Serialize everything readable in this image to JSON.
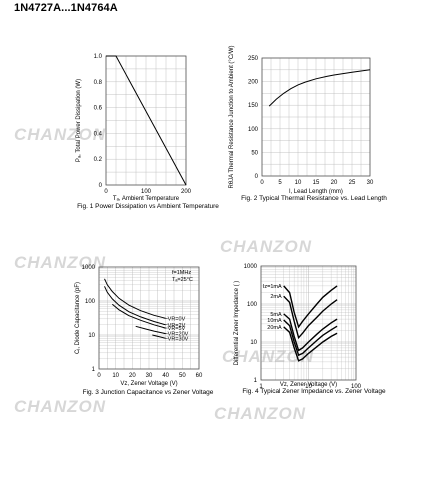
{
  "page_title": "1N4727A...1N4764A",
  "watermark": {
    "text": "CHANZON",
    "color": "#d7d7d7"
  },
  "chart_data": [
    {
      "type": "line",
      "title": "Fig. 1 Power Dissipation vs Ambient Temperature",
      "xlabel": "Tₐ, Ambient Temperature",
      "ylabel": "Pₐ, Total Power Dissipation (W)",
      "x_ticks": [
        0,
        100,
        200
      ],
      "y_ticks": [
        0,
        0.2,
        0.4,
        0.6,
        0.8,
        1.0
      ],
      "y_tick_labels": [
        "0",
        "0.2",
        "0.4",
        "0.6",
        "0.8",
        "1.0"
      ],
      "xlim": [
        0,
        200
      ],
      "ylim": [
        0,
        1.0
      ],
      "grid": true,
      "series": [
        {
          "x": [
            0,
            25,
            200
          ],
          "y": [
            1.0,
            1.0,
            0.0
          ]
        }
      ]
    },
    {
      "type": "line",
      "title": "Fig. 2 Typical Thermal Resistance vs. Lead Length",
      "xlabel": "l, Lead Length (mm)",
      "ylabel": "RθJA Thermal Resistance Junction to Ambient (°C/W)",
      "x_ticks": [
        0,
        5,
        10,
        15,
        20,
        25,
        30
      ],
      "y_ticks": [
        0,
        50,
        100,
        150,
        200,
        250
      ],
      "xlim": [
        0,
        30
      ],
      "ylim": [
        0,
        250
      ],
      "grid": true,
      "series": [
        {
          "x": [
            2,
            4,
            6,
            8,
            10,
            12,
            15,
            18,
            20,
            25,
            30
          ],
          "y": [
            148,
            163,
            175,
            185,
            193,
            199,
            206,
            211,
            214,
            220,
            225
          ]
        }
      ]
    },
    {
      "type": "line",
      "title": "Fig. 3 Junction Capacitance vs Zener Voltage",
      "xlabel": "Vz, Zener Voltage (V)",
      "ylabel": "Cⱼ, Diode Capacitance (pF)",
      "y_scale": "log",
      "x_ticks": [
        0,
        10,
        20,
        30,
        40,
        50,
        60
      ],
      "y_ticks": [
        1,
        10,
        100,
        1000
      ],
      "xlim": [
        0,
        60
      ],
      "ylim": [
        1,
        1000
      ],
      "grid": true,
      "annotations": [
        "f=1MHz",
        "Tₐ=25°C"
      ],
      "series": [
        {
          "name": "VR=0V",
          "x": [
            3.3,
            5,
            8,
            12,
            18,
            25,
            33,
            40
          ],
          "y": [
            450,
            300,
            190,
            120,
            75,
            52,
            38,
            31
          ]
        },
        {
          "name": "VR=2V",
          "x": [
            3.3,
            5,
            8,
            12,
            18,
            25,
            33,
            40
          ],
          "y": [
            270,
            180,
            115,
            75,
            48,
            34,
            25,
            20
          ]
        },
        {
          "name": "VR=5V",
          "x": [
            8,
            12,
            18,
            25,
            33,
            40
          ],
          "y": [
            80,
            55,
            37,
            27,
            20,
            16
          ]
        },
        {
          "name": "VR=20V",
          "x": [
            22,
            28,
            33,
            40
          ],
          "y": [
            18,
            15,
            13,
            11
          ]
        },
        {
          "name": "VR=30V",
          "x": [
            32,
            36,
            40
          ],
          "y": [
            10,
            9,
            8
          ]
        }
      ]
    },
    {
      "type": "line",
      "title": "Fig. 4 Typical Zener Impedance vs. Zener Voltage",
      "xlabel": "Vz, Zener Voltage (V)",
      "ylabel": "Differential Zener Impedance (  )",
      "x_scale": "log",
      "y_scale": "log",
      "x_ticks": [
        1,
        10,
        100
      ],
      "y_ticks": [
        1,
        10,
        100,
        1000
      ],
      "xlim": [
        1,
        100
      ],
      "ylim": [
        1,
        1000
      ],
      "grid": true,
      "series": [
        {
          "name": "Iz=1mA",
          "x": [
            3,
            4,
            5,
            6.2,
            7.5,
            10,
            15,
            20,
            30,
            40
          ],
          "y": [
            300,
            200,
            60,
            25,
            35,
            55,
            100,
            150,
            230,
            300
          ]
        },
        {
          "name": "2mA",
          "x": [
            3,
            4,
            5,
            6.2,
            7.5,
            10,
            15,
            20,
            30,
            40
          ],
          "y": [
            160,
            110,
            35,
            13,
            17,
            27,
            45,
            65,
            100,
            130
          ]
        },
        {
          "name": "5mA",
          "x": [
            3,
            4,
            5,
            6.2,
            7.5,
            10,
            15,
            20,
            30,
            40
          ],
          "y": [
            55,
            40,
            14,
            6,
            7,
            10,
            16,
            22,
            32,
            40
          ]
        },
        {
          "name": "10mA",
          "x": [
            3,
            4,
            5,
            6.2,
            7.5,
            10,
            15,
            20,
            30,
            40
          ],
          "y": [
            38,
            27,
            10,
            4.5,
            5,
            7,
            11,
            15,
            21,
            26
          ]
        },
        {
          "name": "20mA",
          "x": [
            3,
            4,
            5,
            6.2,
            7.5,
            10,
            15,
            20,
            30,
            40
          ],
          "y": [
            25,
            18,
            7,
            3.2,
            3.6,
            5,
            7.5,
            10,
            14,
            17
          ]
        }
      ]
    }
  ]
}
